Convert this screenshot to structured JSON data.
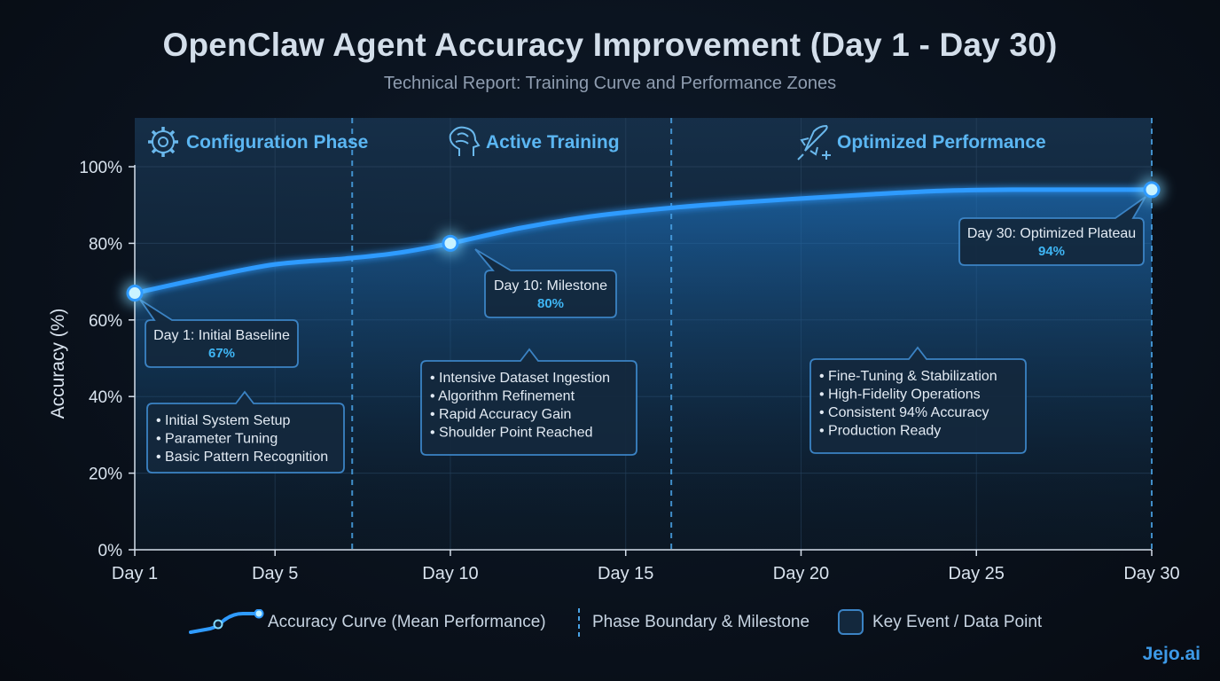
{
  "title": "OpenClaw Agent Accuracy Improvement (Day 1 - Day 30)",
  "subtitle": "Technical Report: Training Curve and Performance Zones",
  "brand": "Jejo.ai",
  "colors": {
    "accent": "#2f9bff",
    "glow": "#7fd8ff",
    "label_blue": "#5bb6f2",
    "value_blue": "#3fb6f5",
    "box_fill": "#13283d",
    "box_stroke": "#3b83c4"
  },
  "chart_data": {
    "type": "line",
    "title": "OpenClaw Agent Accuracy Improvement (Day 1 - Day 30)",
    "subtitle": "Technical Report: Training Curve and Performance Zones",
    "ylabel": "Accuracy (%)",
    "xlabel": "",
    "xlim": [
      1,
      30
    ],
    "ylim": [
      0,
      100
    ],
    "x_ticks": [
      1,
      5,
      10,
      15,
      20,
      25,
      30
    ],
    "x_tick_labels": [
      "Day 1",
      "Day 5",
      "Day 10",
      "Day 15",
      "Day 20",
      "Day 25",
      "Day 30"
    ],
    "y_ticks": [
      0,
      20,
      40,
      60,
      80,
      100
    ],
    "y_tick_labels": [
      "0%",
      "20%",
      "40%",
      "60%",
      "80%",
      "100%"
    ],
    "grid": true,
    "series": [
      {
        "name": "Accuracy Curve (Mean Performance)",
        "x": [
          1,
          3,
          5,
          7,
          8.5,
          10,
          12,
          14,
          16,
          18,
          20,
          22,
          24,
          26,
          28,
          30
        ],
        "y": [
          67,
          71,
          74.5,
          76,
          77.5,
          80,
          84,
          87,
          89,
          90.5,
          91.7,
          92.8,
          93.7,
          94,
          94,
          94
        ]
      }
    ],
    "phase_boundaries": [
      7.2,
      16.3
    ],
    "phases": [
      {
        "label": "Configuration Phase",
        "icon": "gear-icon",
        "x_start": 1,
        "x_end": 7.2
      },
      {
        "label": "Active Training",
        "icon": "brain-icon",
        "x_start": 7.2,
        "x_end": 16.3
      },
      {
        "label": "Optimized Performance",
        "icon": "rocket-icon",
        "x_start": 16.3,
        "x_end": 30
      }
    ],
    "milestones": [
      {
        "x": 1,
        "y": 67,
        "label": "Day 1: Initial Baseline",
        "value": "67%"
      },
      {
        "x": 10,
        "y": 80,
        "label": "Day 10: Milestone",
        "value": "80%"
      },
      {
        "x": 30,
        "y": 94,
        "label": "Day 30: Optimized Plateau",
        "value": "94%"
      }
    ],
    "notes": [
      {
        "phase": 0,
        "bullets": [
          "Initial System Setup",
          "Parameter Tuning",
          "Basic Pattern Recognition"
        ]
      },
      {
        "phase": 1,
        "bullets": [
          "Intensive Dataset Ingestion",
          "Algorithm Refinement",
          "Rapid Accuracy Gain",
          "Shoulder Point Reached"
        ]
      },
      {
        "phase": 2,
        "bullets": [
          "Fine-Tuning & Stabilization",
          "High-Fidelity Operations",
          "Consistent 94% Accuracy",
          "Production Ready"
        ]
      }
    ]
  },
  "legend": [
    {
      "icon": "curve-icon",
      "label": "Accuracy Curve (Mean Performance)"
    },
    {
      "icon": "dashed-line-icon",
      "label": "Phase Boundary & Milestone"
    },
    {
      "icon": "box-icon",
      "label": "Key Event / Data Point"
    }
  ]
}
